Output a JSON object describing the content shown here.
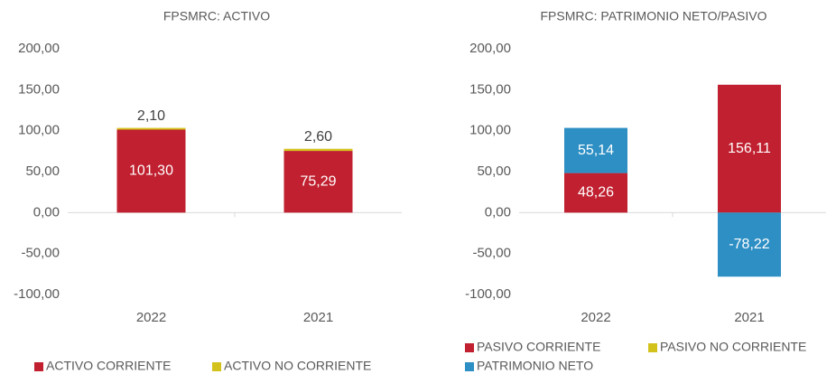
{
  "chart_data": [
    {
      "type": "bar",
      "stacked": true,
      "title": "FPSMRC: ACTIVO",
      "categories": [
        "2022",
        "2021"
      ],
      "series": [
        {
          "name": "ACTIVO CORRIENTE",
          "color": "#c0202f",
          "values": [
            101.3,
            75.29
          ],
          "value_labels": [
            "101,30",
            "75,29"
          ]
        },
        {
          "name": "ACTIVO NO CORRIENTE",
          "color": "#d4c21c",
          "values": [
            2.1,
            2.6
          ],
          "value_labels": [
            "2,10",
            "2,60"
          ]
        }
      ],
      "ylim": [
        -100,
        200
      ],
      "yticks": [
        {
          "value": -100,
          "label": "-100,00"
        },
        {
          "value": -50,
          "label": "-50,00"
        },
        {
          "value": 0,
          "label": "0,00"
        },
        {
          "value": 50,
          "label": "50,00"
        },
        {
          "value": 100,
          "label": "100,00"
        },
        {
          "value": 150,
          "label": "150,00"
        },
        {
          "value": 200,
          "label": "200,00"
        }
      ],
      "grid": false,
      "legend": "bottom"
    },
    {
      "type": "bar",
      "stacked": true,
      "title": "FPSMRC: PATRIMONIO NETO/PASIVO",
      "categories": [
        "2022",
        "2021"
      ],
      "series": [
        {
          "name": "PASIVO CORRIENTE",
          "color": "#c0202f",
          "values": [
            48.26,
            156.11
          ],
          "value_labels": [
            "48,26",
            "156,11"
          ]
        },
        {
          "name": "PASIVO NO CORRIENTE",
          "color": "#d4c21c",
          "values": [
            0,
            0
          ]
        },
        {
          "name": "PATRIMONIO NETO",
          "color": "#2e8fc4",
          "values": [
            55.14,
            -78.22
          ],
          "value_labels": [
            "55,14",
            "-78,22"
          ]
        }
      ],
      "ylim": [
        -100,
        200
      ],
      "yticks": [
        {
          "value": -100,
          "label": "-100,00"
        },
        {
          "value": -50,
          "label": "-50,00"
        },
        {
          "value": 0,
          "label": "0,00"
        },
        {
          "value": 50,
          "label": "50,00"
        },
        {
          "value": 100,
          "label": "100,00"
        },
        {
          "value": 150,
          "label": "150,00"
        },
        {
          "value": 200,
          "label": "200,00"
        }
      ],
      "grid": false,
      "legend": "bottom"
    }
  ]
}
